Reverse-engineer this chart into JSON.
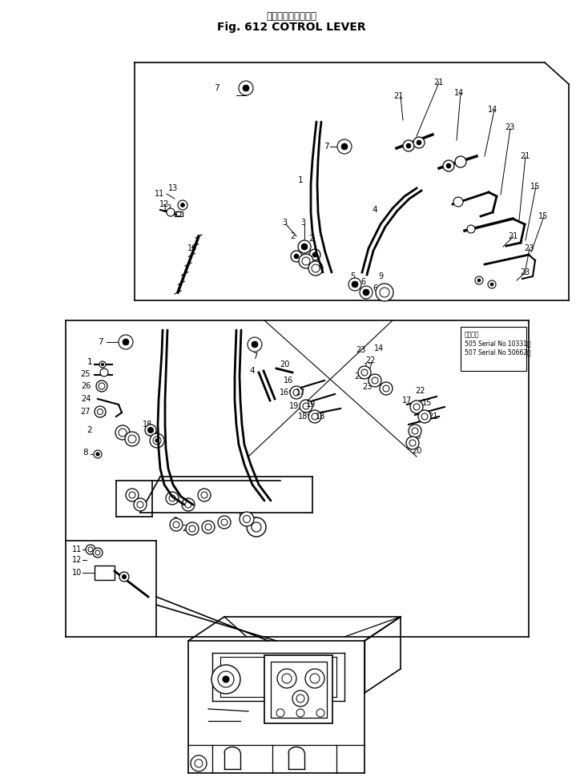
{
  "title_japanese": "コントロールレバー",
  "title_english": "Fig. 612 COTROL LEVER",
  "serial_info_line1": "適用号番",
  "serial_info_line2": "505 Serial No.10331～",
  "serial_info_line3": "507 Serial No.50662～",
  "bg_color": "#ffffff",
  "line_color": "#000000",
  "text_color": "#000000",
  "figsize": [
    7.29,
    9.75
  ],
  "dpi": 100
}
